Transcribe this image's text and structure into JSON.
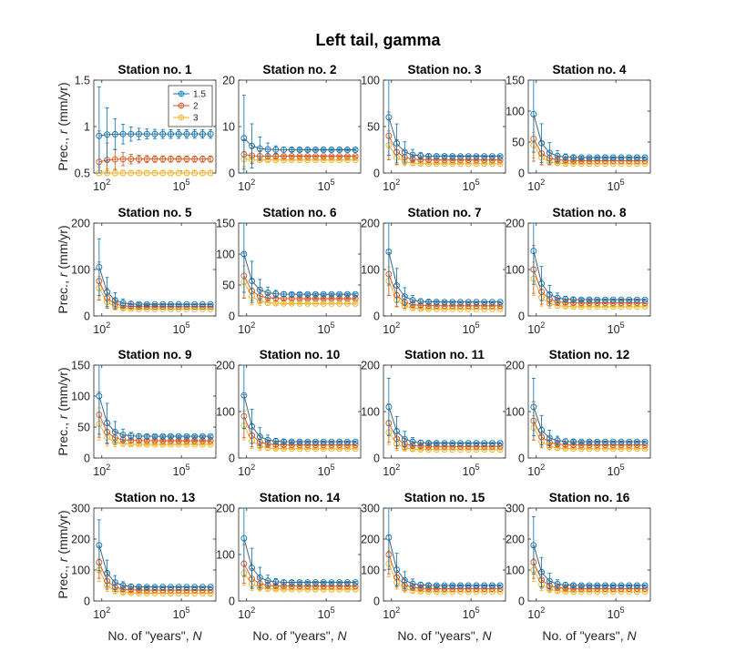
{
  "figure_title": "Left tail, gamma",
  "colors": {
    "s1": "#0072BD",
    "s2": "#D95319",
    "s3": "#EDB120",
    "fit": "#5f5f5f",
    "axis": "#262626"
  },
  "legend": [
    "1.5",
    "2",
    "3"
  ],
  "chart_data": {
    "type": "line",
    "xlabel_text": "No. of \"years\",",
    "xlabel_var": "N",
    "ylabel_text": "Prec.,",
    "ylabel_var": "r",
    "ylabel_unit": "(mm/yr)",
    "x_scale": "log",
    "xlim": [
      50,
      2000000
    ],
    "x_ticks": [
      {
        "v": 100,
        "base": "10",
        "exp": "2"
      },
      {
        "v": 100000,
        "base": "10",
        "exp": "5"
      }
    ],
    "x_exponents": [
      1.9,
      2.2,
      2.5,
      2.8,
      3.1,
      3.4,
      3.7,
      4.0,
      4.3,
      4.6,
      4.9,
      5.2,
      5.5,
      5.8,
      6.1
    ],
    "decay": 1.6,
    "series_names": [
      "1.5",
      "2",
      "3"
    ],
    "panels": [
      {
        "title": "Station no. 1",
        "ylim": [
          0.5,
          1.5
        ],
        "yticks": [
          "0.5",
          "1",
          "1.5"
        ],
        "start": [
          0.9,
          0.62,
          0.5
        ],
        "plateau": [
          0.92,
          0.65,
          0.5
        ],
        "err0": [
          0.48,
          0.3,
          0.04
        ]
      },
      {
        "title": "Station no. 2",
        "ylim": [
          0,
          20
        ],
        "yticks": [
          "0",
          "10",
          "20"
        ],
        "start": [
          7.5,
          4,
          3
        ],
        "plateau": [
          5,
          3.6,
          2.8
        ],
        "err0": [
          9,
          3,
          1.5
        ]
      },
      {
        "title": "Station no. 3",
        "ylim": [
          0,
          100
        ],
        "yticks": [
          "0",
          "50",
          "100"
        ],
        "start": [
          60,
          40,
          30
        ],
        "plateau": [
          18,
          14,
          10
        ],
        "err0": [
          40,
          25,
          15
        ]
      },
      {
        "title": "Station no. 4",
        "ylim": [
          0,
          150
        ],
        "yticks": [
          "0",
          "50",
          "100",
          "150"
        ],
        "start": [
          95,
          55,
          45
        ],
        "plateau": [
          25,
          20,
          15
        ],
        "err0": [
          60,
          35,
          20
        ]
      },
      {
        "title": "Station no. 5",
        "ylim": [
          0,
          200
        ],
        "yticks": [
          "0",
          "100",
          "200"
        ],
        "start": [
          105,
          75,
          60
        ],
        "plateau": [
          25,
          20,
          15
        ],
        "err0": [
          60,
          40,
          25
        ]
      },
      {
        "title": "Station no. 6",
        "ylim": [
          0,
          150
        ],
        "yticks": [
          "0",
          "50",
          "100",
          "150"
        ],
        "start": [
          100,
          65,
          55
        ],
        "plateau": [
          35,
          28,
          20
        ],
        "err0": [
          60,
          35,
          25
        ]
      },
      {
        "title": "Station no. 7",
        "ylim": [
          0,
          200
        ],
        "yticks": [
          "0",
          "100",
          "200"
        ],
        "start": [
          138,
          90,
          75
        ],
        "plateau": [
          30,
          22,
          15
        ],
        "err0": [
          70,
          45,
          30
        ]
      },
      {
        "title": "Station no. 8",
        "ylim": [
          0,
          200
        ],
        "yticks": [
          "0",
          "100",
          "200"
        ],
        "start": [
          140,
          100,
          80
        ],
        "plateau": [
          35,
          28,
          20
        ],
        "err0": [
          70,
          50,
          35
        ]
      },
      {
        "title": "Station no. 9",
        "ylim": [
          0,
          150
        ],
        "yticks": [
          "0",
          "50",
          "100",
          "150"
        ],
        "start": [
          100,
          70,
          55
        ],
        "plateau": [
          35,
          28,
          22
        ],
        "err0": [
          60,
          35,
          25
        ]
      },
      {
        "title": "Station no. 10",
        "ylim": [
          0,
          200
        ],
        "yticks": [
          "0",
          "100",
          "200"
        ],
        "start": [
          135,
          90,
          70
        ],
        "plateau": [
          35,
          28,
          20
        ],
        "err0": [
          70,
          45,
          30
        ]
      },
      {
        "title": "Station no. 11",
        "ylim": [
          0,
          200
        ],
        "yticks": [
          "0",
          "100",
          "200"
        ],
        "start": [
          110,
          75,
          55
        ],
        "plateau": [
          32,
          25,
          18
        ],
        "err0": [
          60,
          40,
          25
        ]
      },
      {
        "title": "Station no. 12",
        "ylim": [
          0,
          200
        ],
        "yticks": [
          "0",
          "100",
          "200"
        ],
        "start": [
          110,
          80,
          65
        ],
        "plateau": [
          35,
          28,
          20
        ],
        "err0": [
          60,
          40,
          25
        ]
      },
      {
        "title": "Station no. 13",
        "ylim": [
          0,
          300
        ],
        "yticks": [
          "0",
          "100",
          "200",
          "300"
        ],
        "start": [
          180,
          125,
          100
        ],
        "plateau": [
          45,
          35,
          25
        ],
        "err0": [
          80,
          50,
          35
        ]
      },
      {
        "title": "Station no. 14",
        "ylim": [
          0,
          200
        ],
        "yticks": [
          "0",
          "100",
          "200"
        ],
        "start": [
          135,
          80,
          60
        ],
        "plateau": [
          40,
          32,
          25
        ],
        "err0": [
          80,
          40,
          25
        ]
      },
      {
        "title": "Station no. 15",
        "ylim": [
          0,
          300
        ],
        "yticks": [
          "0",
          "100",
          "200",
          "300"
        ],
        "start": [
          205,
          150,
          120
        ],
        "plateau": [
          50,
          40,
          30
        ],
        "err0": [
          100,
          60,
          40
        ]
      },
      {
        "title": "Station no. 16",
        "ylim": [
          0,
          300
        ],
        "yticks": [
          "0",
          "100",
          "200",
          "300"
        ],
        "start": [
          180,
          125,
          100
        ],
        "plateau": [
          50,
          40,
          30
        ],
        "err0": [
          90,
          50,
          35
        ]
      }
    ]
  }
}
